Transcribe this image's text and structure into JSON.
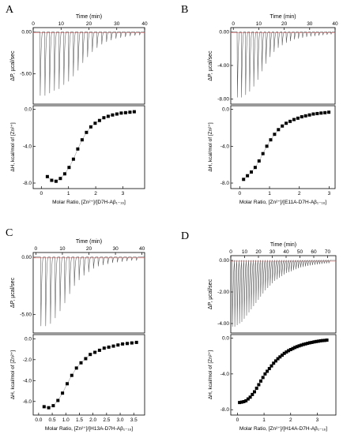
{
  "panels": {
    "a": {
      "letter": "A"
    },
    "b": {
      "letter": "B"
    },
    "c": {
      "letter": "C"
    },
    "d": {
      "letter": "D"
    }
  },
  "chart_data": [
    {
      "panel": "A",
      "type": "scatter",
      "top": {
        "xlabel": "Time (min)",
        "ylabel": "ΔP, µcal/sec",
        "xlim": [
          0,
          40
        ],
        "xticks": [
          0,
          10,
          20,
          30,
          40
        ],
        "ylim": [
          -8.6,
          0.5
        ],
        "yticks": [
          0.0,
          -5.0
        ],
        "ytick_labels": [
          "0.00",
          "-5.00"
        ],
        "injection_times": [
          2.4,
          4.1,
          5.8,
          7.5,
          9.2,
          10.9,
          12.6,
          14.3,
          16.0,
          17.7,
          19.4,
          21.1,
          22.8,
          24.5,
          26.2,
          27.9,
          29.6,
          31.3,
          33.0,
          34.7,
          36.4,
          38.1
        ],
        "peak_heights": [
          -7.6,
          -7.6,
          -7.3,
          -7.0,
          -6.8,
          -6.3,
          -5.9,
          -5.3,
          -4.6,
          -3.7,
          -3.0,
          -2.4,
          -1.9,
          -1.5,
          -1.2,
          -1.0,
          -0.8,
          -0.7,
          -0.6,
          -0.5,
          -0.45,
          -0.4
        ]
      },
      "bottom": {
        "xlabel": "Molar Ratio, [Zn²⁺]/[D7H-Aβ₁₋₁₆]",
        "ylabel": "ΔH, kcal/mol of [Zn²⁺]",
        "xlim": [
          -0.3,
          3.8
        ],
        "xticks": [
          0,
          1,
          2,
          3
        ],
        "ylim": [
          -8.6,
          0.4
        ],
        "yticks": [
          0.0,
          -4.0,
          -8.0
        ],
        "ytick_labels": [
          "0.0",
          "-4.0",
          "-8.0"
        ],
        "x": [
          0.22,
          0.38,
          0.54,
          0.7,
          0.86,
          1.02,
          1.18,
          1.34,
          1.5,
          1.66,
          1.82,
          1.98,
          2.14,
          2.3,
          2.46,
          2.62,
          2.78,
          2.94,
          3.1,
          3.26,
          3.42
        ],
        "y": [
          -7.3,
          -7.7,
          -7.8,
          -7.5,
          -7.0,
          -6.3,
          -5.4,
          -4.3,
          -3.3,
          -2.5,
          -1.9,
          -1.5,
          -1.2,
          -0.9,
          -0.75,
          -0.6,
          -0.5,
          -0.4,
          -0.35,
          -0.3,
          -0.25
        ]
      }
    },
    {
      "panel": "B",
      "type": "scatter",
      "top": {
        "xlabel": "Time (min)",
        "ylabel": "ΔP, µcal/sec",
        "xlim": [
          -1,
          40
        ],
        "xticks": [
          0,
          10,
          20,
          30,
          40
        ],
        "ylim": [
          -8.6,
          0.5
        ],
        "yticks": [
          0.0,
          -4.0,
          -8.0
        ],
        "ytick_labels": [
          "0.00",
          "-4.00",
          "-8.00"
        ],
        "injection_times": [
          1.5,
          3.1,
          4.7,
          6.3,
          7.9,
          9.5,
          11.1,
          12.7,
          14.3,
          15.9,
          17.5,
          19.1,
          20.7,
          22.3,
          23.9,
          25.5,
          27.1,
          28.7,
          30.3,
          31.9,
          33.5,
          35.1,
          36.7,
          38.3
        ],
        "peak_heights": [
          -7.8,
          -7.8,
          -7.5,
          -7.1,
          -6.5,
          -5.7,
          -4.7,
          -3.8,
          -3.0,
          -2.4,
          -1.9,
          -1.6,
          -1.3,
          -1.1,
          -0.9,
          -0.8,
          -0.7,
          -0.6,
          -0.55,
          -0.5,
          -0.45,
          -0.4,
          -0.35,
          -0.3
        ]
      },
      "bottom": {
        "xlabel": "Molar Ratio, [Zn²⁺]/[E11A-D7H-Aβ₁₋₁₆]",
        "ylabel": "ΔH, kcal/mol of [Zn²⁺]",
        "xlim": [
          -0.3,
          3.2
        ],
        "xticks": [
          0,
          1,
          2,
          3
        ],
        "ylim": [
          -8.6,
          0.4
        ],
        "yticks": [
          0.0,
          -4.0,
          -8.0
        ],
        "ytick_labels": [
          "0.0",
          "-4.0",
          "-8.0"
        ],
        "x": [
          0.13,
          0.26,
          0.39,
          0.52,
          0.65,
          0.78,
          0.91,
          1.04,
          1.17,
          1.3,
          1.43,
          1.56,
          1.69,
          1.82,
          1.95,
          2.08,
          2.21,
          2.34,
          2.47,
          2.6,
          2.73,
          2.86,
          2.99
        ],
        "y": [
          -7.6,
          -7.2,
          -6.8,
          -6.3,
          -5.6,
          -4.8,
          -4.0,
          -3.3,
          -2.7,
          -2.2,
          -1.8,
          -1.5,
          -1.3,
          -1.1,
          -0.95,
          -0.8,
          -0.7,
          -0.6,
          -0.5,
          -0.45,
          -0.4,
          -0.35,
          -0.3
        ]
      }
    },
    {
      "panel": "C",
      "type": "scatter",
      "top": {
        "xlabel": "Time (min)",
        "ylabel": "ΔP, µcal/sec",
        "xlim": [
          -1,
          41
        ],
        "xticks": [
          0,
          10,
          20,
          30,
          40
        ],
        "ylim": [
          -6.6,
          0.4
        ],
        "yticks": [
          0.0,
          -5.0
        ],
        "ytick_labels": [
          "0.00",
          "-5.00"
        ],
        "injection_times": [
          1.8,
          3.6,
          5.4,
          7.2,
          9.0,
          10.8,
          12.6,
          14.4,
          16.2,
          18.0,
          19.8,
          21.6,
          23.4,
          25.2,
          27.0,
          28.8,
          30.6,
          32.4,
          34.2,
          36.0,
          37.8
        ],
        "peak_heights": [
          -6.0,
          -6.0,
          -5.8,
          -5.3,
          -4.7,
          -4.0,
          -3.2,
          -2.5,
          -2.0,
          -1.6,
          -1.3,
          -1.0,
          -0.8,
          -0.7,
          -0.6,
          -0.5,
          -0.45,
          -0.4,
          -0.35,
          -0.3,
          -0.3
        ]
      },
      "bottom": {
        "xlabel": "Molar Ratio, [Zn²⁺]/[H13A-D7H-Aβ₁₋₁₆]",
        "ylabel": "ΔH, kcal/mol of [Zn²⁺]",
        "xlim": [
          -0.2,
          3.9
        ],
        "xticks": [
          0.0,
          0.5,
          1.0,
          1.5,
          2.0,
          2.5,
          3.0,
          3.5
        ],
        "xtick_labels": [
          "0.0",
          "0.5",
          "1.0",
          "1.5",
          "2.0",
          "2.5",
          "3.0",
          "3.5"
        ],
        "ylim": [
          -7.3,
          0.4
        ],
        "yticks": [
          0.0,
          -2.0,
          -4.0,
          -6.0
        ],
        "ytick_labels": [
          "0.0",
          "-2.0",
          "-4.0",
          "-6.0"
        ],
        "x": [
          0.2,
          0.37,
          0.54,
          0.71,
          0.88,
          1.05,
          1.22,
          1.39,
          1.56,
          1.73,
          1.9,
          2.07,
          2.24,
          2.41,
          2.58,
          2.75,
          2.92,
          3.09,
          3.26,
          3.43,
          3.6
        ],
        "y": [
          -6.5,
          -6.6,
          -6.4,
          -5.9,
          -5.2,
          -4.3,
          -3.5,
          -2.8,
          -2.3,
          -1.9,
          -1.5,
          -1.3,
          -1.1,
          -0.9,
          -0.8,
          -0.7,
          -0.6,
          -0.5,
          -0.45,
          -0.4,
          -0.35
        ]
      }
    },
    {
      "panel": "D",
      "type": "scatter",
      "top": {
        "xlabel": "Time (min)",
        "ylabel": "ΔP, µcal/sec",
        "xlim": [
          0,
          76
        ],
        "xticks": [
          0,
          10,
          20,
          30,
          40,
          50,
          60,
          70
        ],
        "ylim": [
          -4.6,
          0.3
        ],
        "yticks": [
          0.0,
          -2.0,
          -4.0
        ],
        "ytick_labels": [
          "0.00",
          "-2.00",
          "-4.00"
        ],
        "injection_times": [
          1.0,
          2.7,
          4.4,
          6.1,
          7.8,
          9.5,
          11.2,
          12.9,
          14.6,
          16.3,
          18.0,
          19.7,
          21.4,
          23.1,
          24.8,
          26.5,
          28.2,
          29.9,
          31.6,
          33.3,
          35.0,
          36.7,
          38.4,
          40.1,
          41.8,
          43.5,
          45.2,
          46.9,
          48.6,
          50.3,
          52.0,
          53.7,
          55.4,
          57.1,
          58.8,
          60.5,
          62.2,
          63.9,
          65.6,
          67.3,
          69.0,
          70.7
        ],
        "peak_heights": [
          -4.2,
          -4.2,
          -4.1,
          -4.0,
          -3.9,
          -3.7,
          -3.5,
          -3.3,
          -3.1,
          -2.9,
          -2.7,
          -2.5,
          -2.3,
          -2.1,
          -1.9,
          -1.75,
          -1.6,
          -1.45,
          -1.3,
          -1.2,
          -1.1,
          -1.0,
          -0.9,
          -0.8,
          -0.75,
          -0.7,
          -0.62,
          -0.56,
          -0.5,
          -0.45,
          -0.42,
          -0.38,
          -0.35,
          -0.32,
          -0.3,
          -0.28,
          -0.26,
          -0.24,
          -0.22,
          -0.2,
          -0.19,
          -0.18
        ]
      },
      "bottom": {
        "xlabel": "Molar Ratio, [Zn²⁺]/[H14A-D7H-Aβ₁₋₁₆]",
        "ylabel": "ΔH, kcal/mol of [Zn²⁺]",
        "xlim": [
          -0.25,
          3.7
        ],
        "xticks": [
          0,
          1,
          2,
          3
        ],
        "ylim": [
          -8.6,
          0.4
        ],
        "yticks": [
          0.0,
          -4.0,
          -8.0
        ],
        "ytick_labels": [
          "0.0",
          "-4.0",
          "-8.0"
        ],
        "x": [
          0.08,
          0.16,
          0.24,
          0.32,
          0.4,
          0.48,
          0.56,
          0.64,
          0.72,
          0.8,
          0.88,
          0.96,
          1.04,
          1.12,
          1.2,
          1.28,
          1.36,
          1.44,
          1.52,
          1.6,
          1.68,
          1.76,
          1.84,
          1.92,
          2.0,
          2.08,
          2.16,
          2.24,
          2.32,
          2.4,
          2.48,
          2.56,
          2.64,
          2.72,
          2.8,
          2.88,
          2.96,
          3.04,
          3.12,
          3.2,
          3.28,
          3.36
        ],
        "y": [
          -7.2,
          -7.15,
          -7.1,
          -7.0,
          -6.8,
          -6.6,
          -6.3,
          -6.0,
          -5.6,
          -5.2,
          -4.8,
          -4.4,
          -4.0,
          -3.7,
          -3.4,
          -3.1,
          -2.8,
          -2.55,
          -2.3,
          -2.1,
          -1.9,
          -1.7,
          -1.55,
          -1.4,
          -1.28,
          -1.16,
          -1.05,
          -0.95,
          -0.86,
          -0.78,
          -0.7,
          -0.64,
          -0.58,
          -0.52,
          -0.47,
          -0.42,
          -0.38,
          -0.34,
          -0.3,
          -0.27,
          -0.25,
          -0.22
        ]
      }
    }
  ]
}
